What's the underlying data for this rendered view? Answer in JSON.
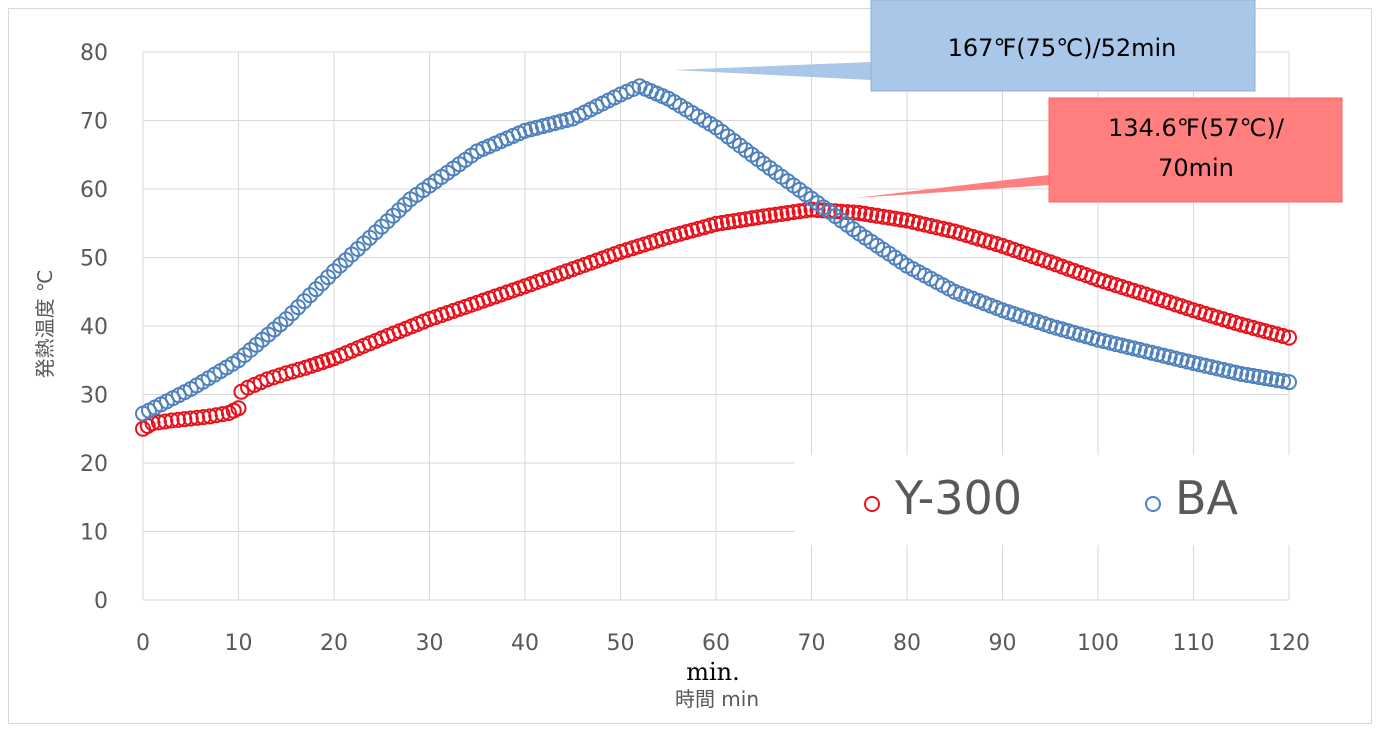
{
  "chart_data": {
    "type": "scatter",
    "xlabel": "時間 min",
    "ylabel": "発熱温度 ℃",
    "xlim": [
      0,
      120
    ],
    "ylim": [
      0,
      80
    ],
    "x_ticks": [
      0,
      10,
      20,
      30,
      40,
      50,
      60,
      70,
      80,
      90,
      100,
      110,
      120
    ],
    "y_ticks": [
      0,
      10,
      20,
      30,
      40,
      50,
      60,
      70,
      80
    ],
    "grid": true,
    "legend_position": "bottom-right",
    "series": [
      {
        "name": "Y-300",
        "color": "#e8101a",
        "points": [
          [
            0,
            25
          ],
          [
            1,
            25.8
          ],
          [
            3,
            26.2
          ],
          [
            5,
            26.5
          ],
          [
            7,
            26.8
          ],
          [
            9,
            27.3
          ],
          [
            10,
            28
          ],
          [
            10.3,
            30.4
          ],
          [
            11,
            31
          ],
          [
            13,
            32.2
          ],
          [
            15,
            33.1
          ],
          [
            17,
            33.9
          ],
          [
            20,
            35.3
          ],
          [
            25,
            38.2
          ],
          [
            30,
            41
          ],
          [
            35,
            43.4
          ],
          [
            40,
            45.8
          ],
          [
            45,
            48.3
          ],
          [
            50,
            50.8
          ],
          [
            55,
            53
          ],
          [
            60,
            54.9
          ],
          [
            65,
            56
          ],
          [
            70,
            57
          ],
          [
            75,
            56.5
          ],
          [
            80,
            55.4
          ],
          [
            85,
            53.8
          ],
          [
            90,
            51.7
          ],
          [
            95,
            49.3
          ],
          [
            100,
            46.8
          ],
          [
            105,
            44.6
          ],
          [
            110,
            42.3
          ],
          [
            115,
            40.2
          ],
          [
            120,
            38.3
          ]
        ]
      },
      {
        "name": "BA",
        "color": "#4f81bd",
        "points": [
          [
            0,
            27.2
          ],
          [
            5,
            30.8
          ],
          [
            10,
            35
          ],
          [
            15,
            41
          ],
          [
            20,
            48
          ],
          [
            25,
            54.5
          ],
          [
            28,
            58.5
          ],
          [
            30,
            60.5
          ],
          [
            35,
            65.5
          ],
          [
            40,
            68.5
          ],
          [
            45,
            70.3
          ],
          [
            50,
            73.8
          ],
          [
            52,
            75
          ],
          [
            55,
            73.2
          ],
          [
            60,
            69
          ],
          [
            65,
            63.7
          ],
          [
            70,
            58.6
          ],
          [
            75,
            53.5
          ],
          [
            80,
            48.8
          ],
          [
            85,
            45
          ],
          [
            90,
            42.3
          ],
          [
            95,
            40
          ],
          [
            100,
            38
          ],
          [
            105,
            36.3
          ],
          [
            110,
            34.6
          ],
          [
            115,
            33
          ],
          [
            120,
            31.8
          ]
        ]
      }
    ],
    "annotations": [
      {
        "text": "167℉(75℃)/52min",
        "color": "#a9c7e8",
        "x": 52,
        "y": 75
      },
      {
        "lines": [
          "134.6℉(57℃)/",
          "70min"
        ],
        "color": "#ff7f7f",
        "x": 70,
        "y": 57
      }
    ],
    "overlay_label": "min."
  }
}
